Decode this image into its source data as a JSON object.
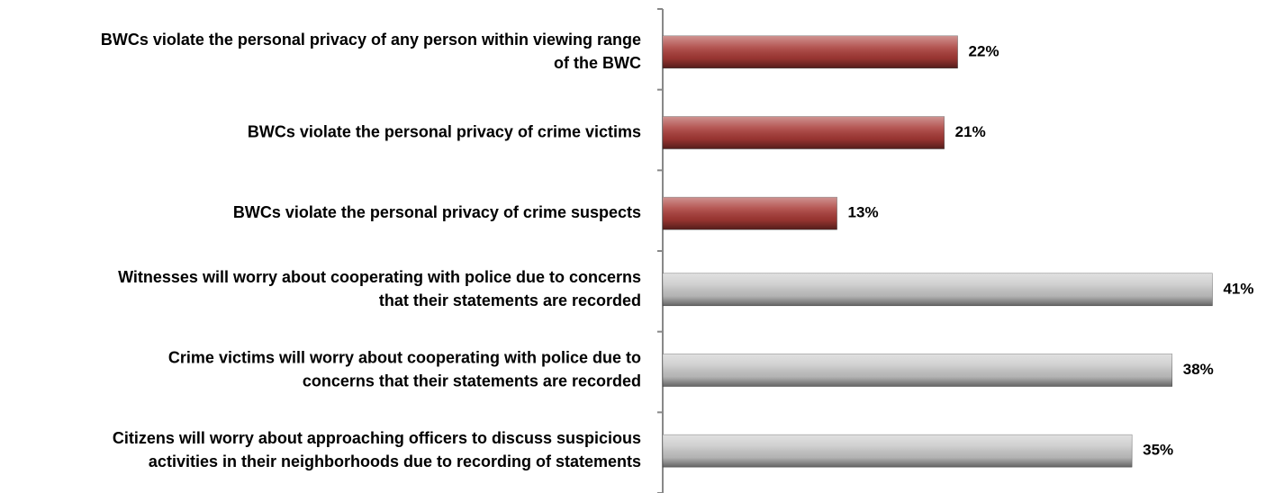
{
  "chart_data": {
    "type": "bar",
    "orientation": "horizontal",
    "categories": [
      "BWCs violate the personal privacy of any person within viewing range\nof the BWC",
      "BWCs violate the personal privacy of crime victims",
      "BWCs violate the personal privacy of crime suspects",
      "Witnesses will worry about cooperating with police due to concerns\nthat their statements are recorded",
      "Crime victims will worry about cooperating with police due to\nconcerns that their statements are recorded",
      "Citizens will worry about approaching officers to discuss suspicious\nactivities in their neighborhoods due to recording of statements"
    ],
    "values": [
      22,
      21,
      13,
      41,
      38,
      35
    ],
    "value_labels": [
      "22%",
      "21%",
      "13%",
      "41%",
      "38%",
      "35%"
    ],
    "colors": [
      "#a83a36",
      "#a83a36",
      "#a83a36",
      "#c8c8c8",
      "#c8c8c8",
      "#c8c8c8"
    ],
    "xlim": [
      0,
      45
    ]
  }
}
